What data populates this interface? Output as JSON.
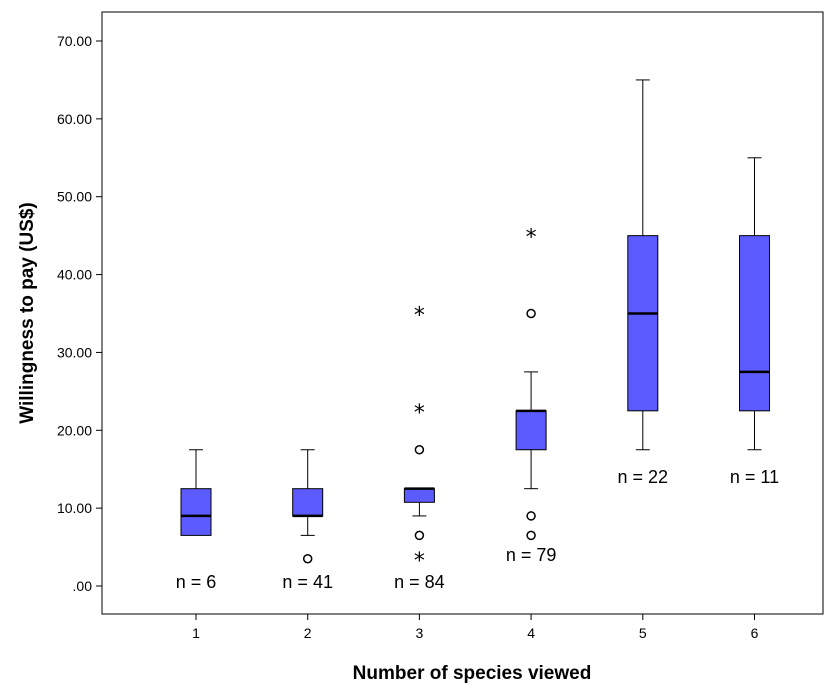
{
  "chart_data": {
    "type": "box",
    "xlabel": "Number of species viewed",
    "ylabel": "Willingness to pay (US$)",
    "ylim": [
      0,
      72
    ],
    "yticks": [
      {
        "value": 0,
        "label": ".00"
      },
      {
        "value": 10,
        "label": "10.00"
      },
      {
        "value": 20,
        "label": "20.00"
      },
      {
        "value": 30,
        "label": "30.00"
      },
      {
        "value": 40,
        "label": "40.00"
      },
      {
        "value": 50,
        "label": "50.00"
      },
      {
        "value": 60,
        "label": "60.00"
      },
      {
        "value": 70,
        "label": "70.00"
      }
    ],
    "categories": [
      "1",
      "2",
      "3",
      "4",
      "5",
      "6"
    ],
    "box_color": "#5b5bff",
    "groups": [
      {
        "category": "1",
        "min": 6.5,
        "q1": 6.5,
        "median": 9,
        "q3": 12.5,
        "max": 17.5,
        "outliers": [],
        "extremes": [],
        "n_label": "n = 6",
        "n_label_y": 0
      },
      {
        "category": "2",
        "min": 6.5,
        "q1": 9,
        "median": 9,
        "q3": 12.5,
        "max": 17.5,
        "outliers": [
          3.5
        ],
        "extremes": [],
        "n_label": "n = 41",
        "n_label_y": 0
      },
      {
        "category": "3",
        "min": 9,
        "q1": 10.75,
        "median": 12.5,
        "q3": 12.5,
        "max": 12.5,
        "outliers": [
          17.5,
          6.5
        ],
        "extremes": [
          35,
          22.5,
          3.5
        ],
        "n_label": "n = 84",
        "n_label_y": 0
      },
      {
        "category": "4",
        "min": 12.5,
        "q1": 17.5,
        "median": 22.5,
        "q3": 22.5,
        "max": 27.5,
        "outliers": [
          35,
          9,
          6.5
        ],
        "extremes": [
          45
        ],
        "n_label": "n = 79",
        "n_label_y": 3.5
      },
      {
        "category": "5",
        "min": 17.5,
        "q1": 22.5,
        "median": 35,
        "q3": 45,
        "max": 65,
        "outliers": [],
        "extremes": [],
        "n_label": "n = 22",
        "n_label_y": 13.5
      },
      {
        "category": "6",
        "min": 17.5,
        "q1": 22.5,
        "median": 27.5,
        "q3": 45,
        "max": 55,
        "outliers": [],
        "extremes": [],
        "n_label": "n = 11",
        "n_label_y": 13.5
      }
    ]
  }
}
